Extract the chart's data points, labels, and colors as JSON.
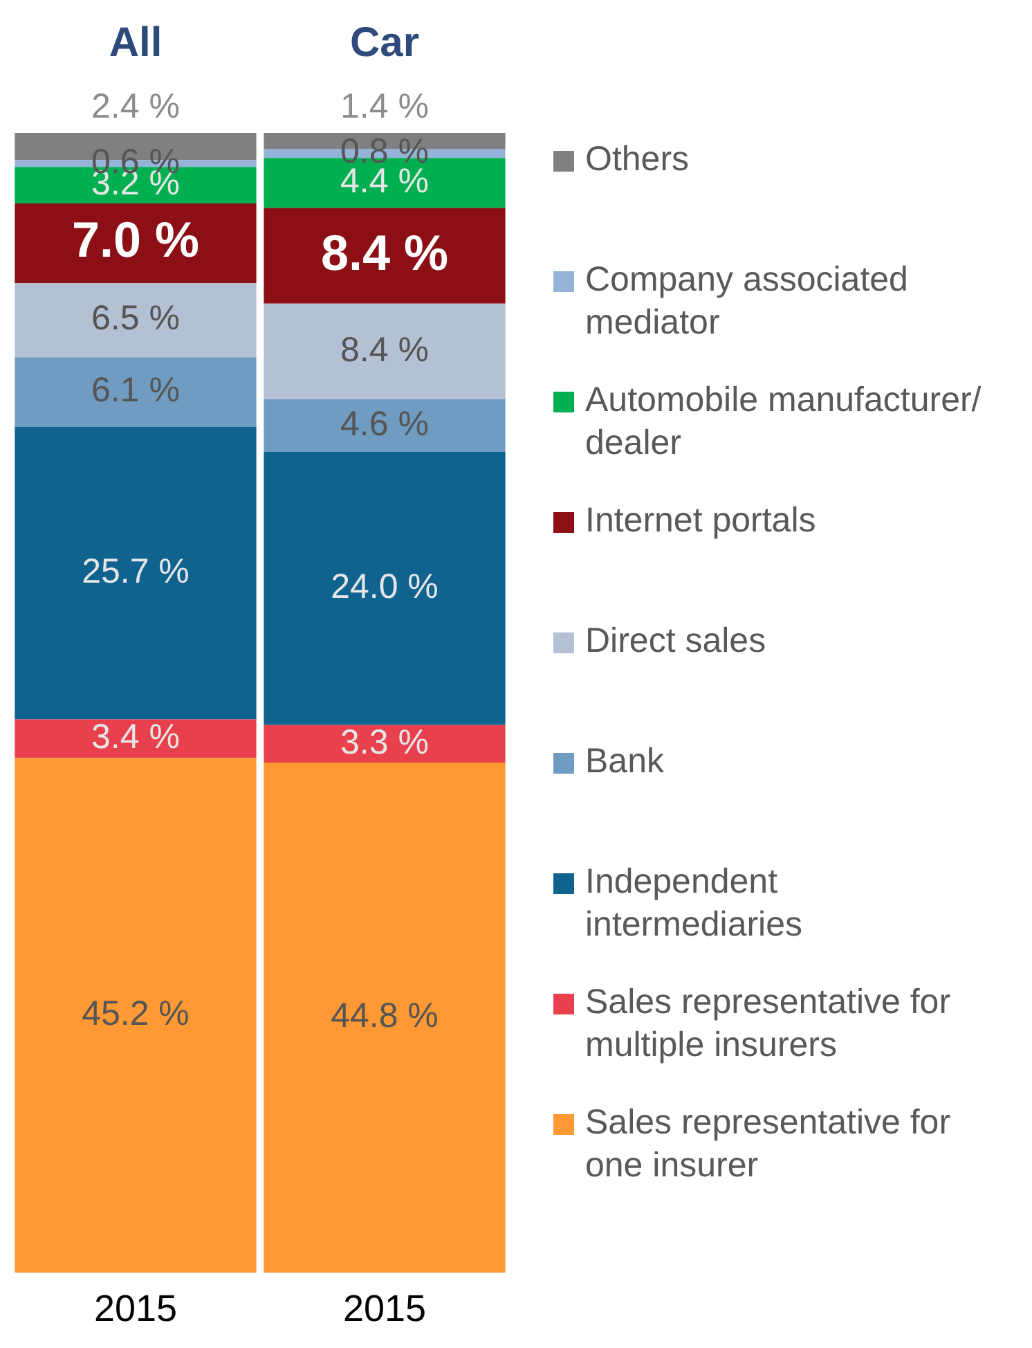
{
  "chart_data": {
    "type": "bar",
    "stacked": true,
    "categories": [
      "2015",
      "2015"
    ],
    "annotations": [
      "All",
      "Car"
    ],
    "legend": "right",
    "data_labels": false,
    "series": [
      {
        "name": "Sales representative for  one insurer",
        "color": "#ff9933",
        "values": [
          45.2,
          44.8
        ],
        "value_labels": [
          "45.2 %",
          "44.8 %"
        ]
      },
      {
        "name": "Sales representative for multiple insurers",
        "color": "#e8414d",
        "values": [
          3.4,
          3.3
        ],
        "value_labels": [
          "3.4 %",
          "3.3 %"
        ]
      },
      {
        "name": "Independent intermediaries",
        "color": "#10628f",
        "values": [
          25.7,
          24.0
        ],
        "value_labels": [
          "25.7 %",
          "24.0 %"
        ]
      },
      {
        "name": "Bank",
        "color": "#6f9cc0",
        "values": [
          6.1,
          4.6
        ],
        "value_labels": [
          "6.1 %",
          "4.6 %"
        ]
      },
      {
        "name": "Direct sales",
        "color": "#b4c0d3",
        "values": [
          6.5,
          8.4
        ],
        "value_labels": [
          "6.5 %",
          "8.4 %"
        ]
      },
      {
        "name": "Internet portals",
        "color": "#8b0f14",
        "values": [
          7.0,
          8.4
        ],
        "value_labels": [
          "7.0 %",
          "8.4 %"
        ]
      },
      {
        "name": "Automobile manufacturer/ dealer",
        "color": "#00b050",
        "values": [
          3.2,
          4.4
        ],
        "value_labels": [
          "3.2 %",
          "4.4 %"
        ]
      },
      {
        "name": "Company associated mediator",
        "color": "#95b3d7",
        "values": [
          0.6,
          0.8
        ],
        "value_labels": [
          "0.6 %",
          "0.8 %"
        ]
      },
      {
        "name": "Others",
        "color": "#808080",
        "values": [
          2.4,
          1.4
        ],
        "value_labels": [
          "2.4 %",
          "1.4 %"
        ]
      }
    ]
  }
}
